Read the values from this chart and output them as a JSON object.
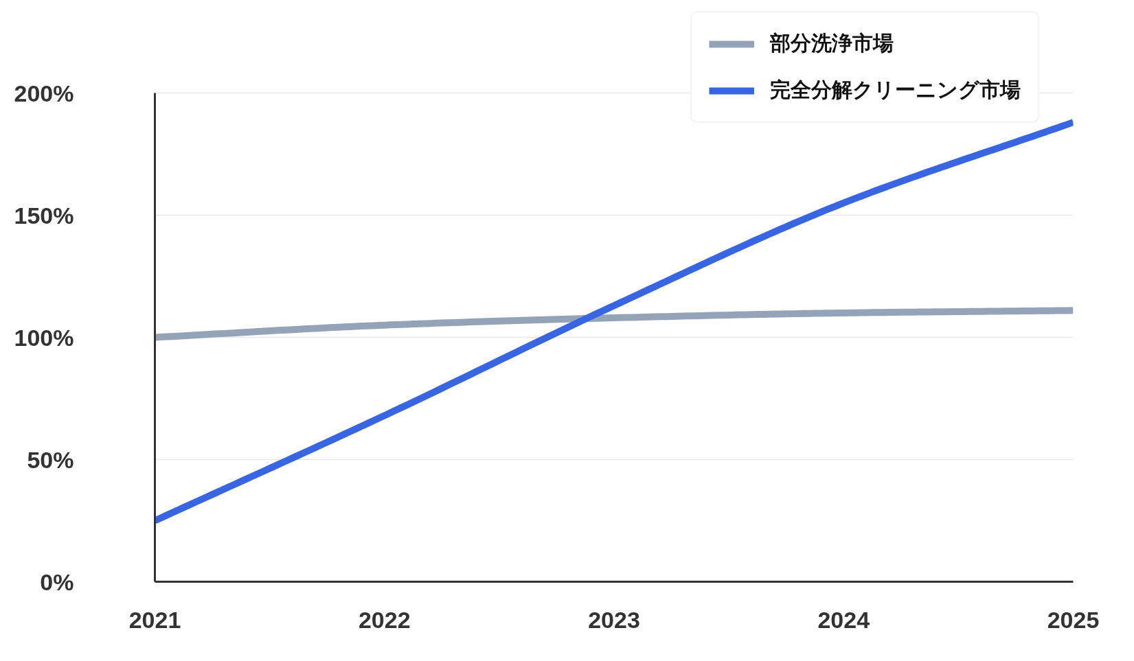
{
  "chart_data": {
    "type": "line",
    "x": [
      2021,
      2022,
      2023,
      2024,
      2025
    ],
    "series": [
      {
        "name": "部分洗浄市場",
        "color": "#94a3b8",
        "values": [
          100,
          105,
          108,
          110,
          111
        ]
      },
      {
        "name": "完全分解クリーニング市場",
        "color": "#3866e3",
        "values": [
          25,
          68,
          113,
          155,
          188
        ]
      }
    ],
    "xlim": [
      2021,
      2025
    ],
    "xticks": [
      2021,
      2022,
      2023,
      2024,
      2025
    ],
    "ylim": [
      0,
      200
    ],
    "yticks": [
      {
        "value": 0,
        "label": "0%"
      },
      {
        "value": 50,
        "label": "50%"
      },
      {
        "value": 100,
        "label": "100%"
      },
      {
        "value": 150,
        "label": "150%"
      },
      {
        "value": 200,
        "label": "200%"
      }
    ],
    "grid": "y",
    "legend": "top right",
    "line_style": "solid"
  }
}
